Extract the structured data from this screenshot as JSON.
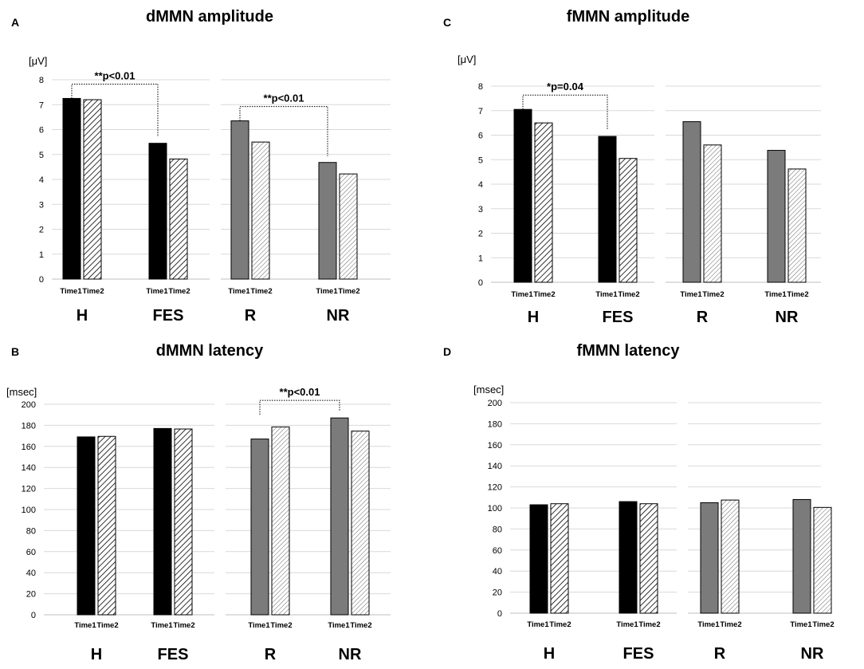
{
  "figure": {
    "panels": [
      {
        "letter": "A"
      },
      {
        "letter": "C"
      },
      {
        "letter": "B"
      },
      {
        "letter": "D"
      }
    ]
  },
  "chart_data": [
    {
      "type": "bar",
      "panel": "A",
      "title": "dMMN amplitude",
      "ylabel": "[μV]",
      "ylim": [
        0,
        8
      ],
      "yticks": [
        "0",
        "1",
        "2",
        "3",
        "4",
        "5",
        "6",
        "7",
        "8"
      ],
      "groups": [
        "H",
        "FES",
        "R",
        "NR"
      ],
      "time_labels": [
        "Time1",
        "Time2"
      ],
      "series": [
        {
          "name": "Time1",
          "values": [
            7.25,
            5.45,
            6.35,
            4.68
          ]
        },
        {
          "name": "Time2",
          "values": [
            7.2,
            4.82,
            5.5,
            4.22
          ]
        }
      ],
      "annotations": [
        {
          "text": "**p<0.01",
          "from_group": "H",
          "to_group": "FES"
        },
        {
          "text": "**p<0.01",
          "from_group": "R",
          "to_group": "NR"
        }
      ]
    },
    {
      "type": "bar",
      "panel": "C",
      "title": "fMMN amplitude",
      "ylabel": "[μV]",
      "ylim": [
        0,
        8
      ],
      "yticks": [
        "0",
        "1",
        "2",
        "3",
        "4",
        "5",
        "6",
        "7",
        "8"
      ],
      "groups": [
        "H",
        "FES",
        "R",
        "NR"
      ],
      "time_labels": [
        "Time1",
        "Time2"
      ],
      "series": [
        {
          "name": "Time1",
          "values": [
            7.05,
            5.95,
            6.55,
            5.38
          ]
        },
        {
          "name": "Time2",
          "values": [
            6.5,
            5.05,
            5.6,
            4.62
          ]
        }
      ],
      "annotations": [
        {
          "text": "*p=0.04",
          "from_group": "H",
          "to_group": "FES"
        }
      ]
    },
    {
      "type": "bar",
      "panel": "B",
      "title": "dMMN latency",
      "ylabel": "[msec]",
      "ylim": [
        0,
        200
      ],
      "yticks": [
        "0",
        "20",
        "40",
        "60",
        "80",
        "100",
        "120",
        "140",
        "160",
        "180",
        "200"
      ],
      "groups": [
        "H",
        "FES",
        "R",
        "NR"
      ],
      "time_labels": [
        "Time1",
        "Time2"
      ],
      "series": [
        {
          "name": "Time1",
          "values": [
            169,
            177,
            167,
            187
          ]
        },
        {
          "name": "Time2",
          "values": [
            169.5,
            176.5,
            178.5,
            174.5
          ]
        }
      ],
      "annotations": [
        {
          "text": "**p<0.01",
          "from_group": "R",
          "to_group": "NR"
        }
      ]
    },
    {
      "type": "bar",
      "panel": "D",
      "title": "fMMN latency",
      "ylabel": "[msec]",
      "ylim": [
        0,
        200
      ],
      "yticks": [
        "0",
        "20",
        "40",
        "60",
        "80",
        "100",
        "120",
        "140",
        "160",
        "180",
        "200"
      ],
      "groups": [
        "H",
        "FES",
        "R",
        "NR"
      ],
      "time_labels": [
        "Time1",
        "Time2"
      ],
      "series": [
        {
          "name": "Time1",
          "values": [
            103,
            106,
            105,
            108
          ]
        },
        {
          "name": "Time2",
          "values": [
            104,
            104,
            107.5,
            100.5
          ]
        }
      ],
      "annotations": []
    }
  ]
}
